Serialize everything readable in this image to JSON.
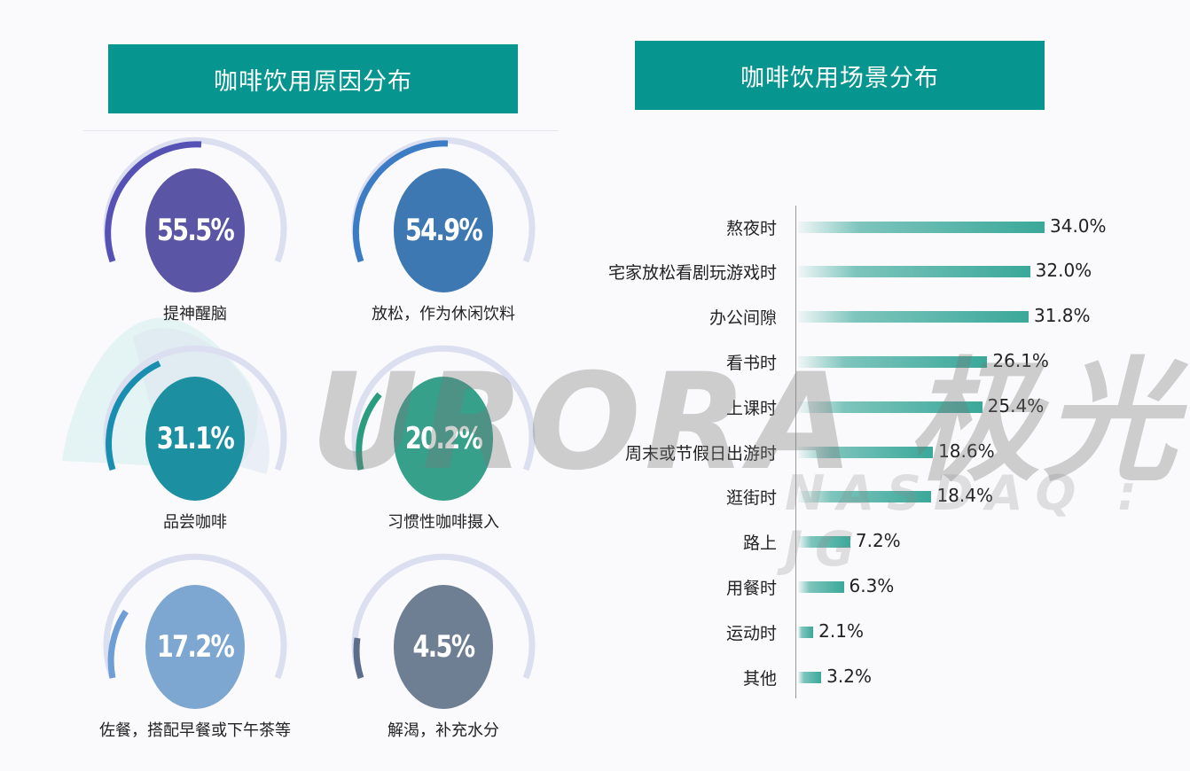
{
  "left_panel": {
    "title": "咖啡饮用原因分布"
  },
  "right_panel": {
    "title": "咖啡饮用场景分布"
  },
  "watermark": {
    "main": "URORA 极光",
    "sub": "NASDAQ : JG"
  },
  "chart_data": [
    {
      "type": "gauge",
      "title": "咖啡饮用原因分布",
      "categories": [
        "提神醒脑",
        "放松，作为休闲饮料",
        "品尝咖啡",
        "习惯性咖啡摄入",
        "佐餐，搭配早餐或下午茶等",
        "解渴，补充水分"
      ],
      "values": [
        55.5,
        54.9,
        31.1,
        20.2,
        17.2,
        4.5
      ],
      "labels": [
        "55.5%",
        "54.9%",
        "31.1%",
        "20.2%",
        "17.2%",
        "4.5%"
      ],
      "colors": [
        "#5a56a5",
        "#3e78b2",
        "#1c8fa0",
        "#36a08a",
        "#7da6d0",
        "#6f7f93"
      ],
      "unit": "%"
    },
    {
      "type": "bar",
      "orientation": "horizontal",
      "title": "咖啡饮用场景分布",
      "categories": [
        "熬夜时",
        "宅家放松看剧玩游戏时",
        "办公间隙",
        "看书时",
        "上课时",
        "周末或节假日出游时",
        "逛街时",
        "路上",
        "用餐时",
        "运动时",
        "其他"
      ],
      "values": [
        34.0,
        32.0,
        31.8,
        26.1,
        25.4,
        18.6,
        18.4,
        7.2,
        6.3,
        2.1,
        3.2
      ],
      "labels": [
        "34.0%",
        "32.0%",
        "31.8%",
        "26.1%",
        "25.4%",
        "18.6%",
        "18.4%",
        "7.2%",
        "6.3%",
        "2.1%",
        "3.2%"
      ],
      "color": "#3aa89a",
      "xlabel": "",
      "ylabel": "",
      "grid": false
    }
  ],
  "gauges": [
    {
      "value": "55.5%",
      "label": "提神醒脑"
    },
    {
      "value": "54.9%",
      "label": "放松，作为休闲饮料"
    },
    {
      "value": "31.1%",
      "label": "品尝咖啡"
    },
    {
      "value": "20.2%",
      "label": "习惯性咖啡摄入"
    },
    {
      "value": "17.2%",
      "label": "佐餐，搭配早餐或下午茶等"
    },
    {
      "value": "4.5%",
      "label": "解渴，补充水分"
    }
  ],
  "bars": [
    {
      "label": "熬夜时",
      "value": "34.0%"
    },
    {
      "label": "宅家放松看剧玩游戏时",
      "value": "32.0%"
    },
    {
      "label": "办公间隙",
      "value": "31.8%"
    },
    {
      "label": "看书时",
      "value": "26.1%"
    },
    {
      "label": "上课时",
      "value": "25.4%"
    },
    {
      "label": "周末或节假日出游时",
      "value": "18.6%"
    },
    {
      "label": "逛街时",
      "value": "18.4%"
    },
    {
      "label": "路上",
      "value": "7.2%"
    },
    {
      "label": "用餐时",
      "value": "6.3%"
    },
    {
      "label": "运动时",
      "value": "2.1%"
    },
    {
      "label": "其他",
      "value": "3.2%"
    }
  ]
}
